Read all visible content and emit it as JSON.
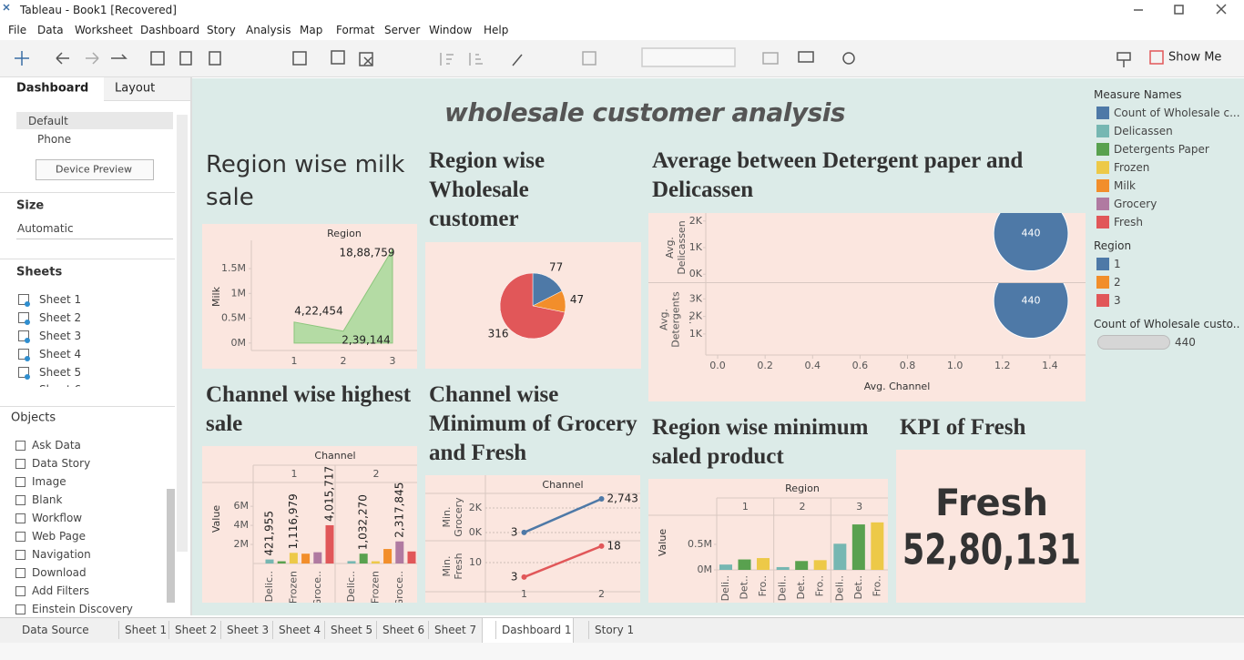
{
  "window": {
    "title": "Tableau - Book1 [Recovered]"
  },
  "menu": [
    "File",
    "Data",
    "Worksheet",
    "Dashboard",
    "Story",
    "Analysis",
    "Map",
    "Format",
    "Server",
    "Window",
    "Help"
  ],
  "toolbar": {
    "show_me": "Show Me"
  },
  "sidebar": {
    "tabs": [
      "Dashboard",
      "Layout"
    ],
    "devices": [
      "Default",
      "Phone"
    ],
    "device_preview": "Device Preview",
    "size_heading": "Size",
    "size_value": "Automatic",
    "sheets_heading": "Sheets",
    "sheets": [
      "Sheet 1",
      "Sheet 2",
      "Sheet 3",
      "Sheet 4",
      "Sheet 5",
      "Sheet 6"
    ],
    "objects_heading": "Objects",
    "objects": [
      "Ask Data",
      "Data Story",
      "Image",
      "Blank",
      "Workflow",
      "Web Page",
      "Navigation",
      "Download",
      "Add Filters",
      "Einstein Discovery"
    ]
  },
  "dashboard": {
    "title": "wholesale customer analysis"
  },
  "legends": {
    "measure_names": {
      "title": "Measure Names",
      "items": [
        {
          "name": "Count of Wholesale c...",
          "color": "#4e79a7"
        },
        {
          "name": "Delicassen",
          "color": "#76b7b2"
        },
        {
          "name": "Detergents Paper",
          "color": "#59a14f"
        },
        {
          "name": "Frozen",
          "color": "#edc948"
        },
        {
          "name": "Milk",
          "color": "#f28e2b"
        },
        {
          "name": "Grocery",
          "color": "#b07aa1"
        },
        {
          "name": "Fresh",
          "color": "#e15759"
        }
      ]
    }
  },
  "tabs": [
    "Data Source",
    "Sheet 1",
    "Sheet 2",
    "Sheet 3",
    "Sheet 4",
    "Sheet 5",
    "Sheet 6",
    "Sheet 7",
    "Dashboard 1",
    "Story 1"
  ],
  "chart_data": [
    {
      "type": "area",
      "title": "Region wise milk sale",
      "x_label": "Region",
      "y_label": "Milk",
      "x": [
        1,
        2,
        3
      ],
      "values": [
        422454,
        239144,
        1888759
      ],
      "value_labels": [
        "4,22,454",
        "2,39,144",
        "18,88,759"
      ],
      "color": "#a7d89a",
      "xlim": [
        0.13,
        3.5
      ],
      "xticks": [
        1,
        2,
        3
      ],
      "ylim": [
        -150000,
        2070000
      ],
      "yticks": [
        {
          "value": 0,
          "label": "0M"
        },
        {
          "value": 500000,
          "label": "0.5M"
        },
        {
          "value": 1000000,
          "label": "1M"
        },
        {
          "value": 1500000,
          "label": "1.5M"
        }
      ]
    },
    {
      "type": "pie",
      "title": "Region wise Wholesale customer",
      "legend_title": "Region",
      "categories": [
        "1",
        "2",
        "3"
      ],
      "values": [
        77,
        47,
        316
      ],
      "colors": [
        "#4e79a7",
        "#f28e2b",
        "#e15759"
      ]
    },
    {
      "type": "scatter",
      "title": "Average between Detergent paper and Delicassen",
      "x_label": "Avg. Channel",
      "size_legend_title": "Count of Wholesale custo..",
      "color": "#4e79a7",
      "x": [
        1.32
      ],
      "sizes": [
        440
      ],
      "xlim": [
        -0.05,
        1.55
      ],
      "xticks": [
        {
          "value": 0,
          "label": "0.0"
        },
        0.2,
        0.4,
        0.6,
        0.8,
        {
          "value": 1,
          "label": "1.0"
        },
        1.2,
        1.4
      ],
      "series": [
        {
          "name": "Avg. Delicassen",
          "values": [
            1525
          ],
          "ylim": [
            -300,
            2300
          ],
          "yticks": [
            {
              "value": 0,
              "label": "0K"
            },
            {
              "value": 1000,
              "label": "1K"
            },
            {
              "value": 2000,
              "label": "2K"
            }
          ]
        },
        {
          "name": "Avg. Detergents ...",
          "values": [
            2881
          ],
          "ylim": [
            -200,
            3900
          ],
          "yticks": [
            {
              "value": 1000,
              "label": "1K"
            },
            {
              "value": 2000,
              "label": "2K"
            },
            {
              "value": 3000,
              "label": "3K"
            }
          ]
        }
      ]
    },
    {
      "type": "bar",
      "title": "Channel wise highest sale",
      "x_label": "Channel",
      "y_label": "Value",
      "categories": [
        "1",
        "2"
      ],
      "bar_labels": [
        "Delic..",
        null,
        "Frozen",
        null,
        "Groce..",
        null
      ],
      "series": [
        {
          "color": "#76b7b2",
          "values": [
            421955,
            248988
          ],
          "value_labels": [
            "421,955",
            null
          ]
        },
        {
          "color": "#59a14f",
          "values": [
            235587,
            1032270
          ],
          "value_labels": [
            null,
            "1,032,270"
          ]
        },
        {
          "color": "#edc948",
          "values": [
            1116979,
            234671
          ],
          "value_labels": [
            "1,116,979",
            null
          ]
        },
        {
          "color": "#f28e2b",
          "values": [
            1028614,
            1521743
          ],
          "value_labels": [
            null,
            null
          ]
        },
        {
          "color": "#b07aa1",
          "values": [
            1180717,
            2317845
          ],
          "value_labels": [
            null,
            "2,317,845"
          ]
        },
        {
          "color": "#e15759",
          "values": [
            4015717,
            1264414
          ],
          "value_labels": [
            "4,015,717",
            null
          ]
        }
      ],
      "ylim": [
        0,
        8500000
      ],
      "yticks": [
        {
          "value": 2000000,
          "label": "2M"
        },
        {
          "value": 4000000,
          "label": "4M"
        },
        {
          "value": 6000000,
          "label": "6M"
        }
      ]
    },
    {
      "type": "line",
      "title": "Channel wise Minimum of Grocery and Fresh",
      "x_label": "Channel",
      "x": [
        1,
        2
      ],
      "xticks": [
        1,
        2
      ],
      "xlim": [
        0.5,
        2.5
      ],
      "series": [
        {
          "name": "Min. Grocery",
          "color": "#4e79a7",
          "values": [
            3,
            2743
          ],
          "value_labels": [
            "3",
            "2,743"
          ],
          "ylim": [
            -670,
            3190
          ],
          "yticks": [
            {
              "value": 0,
              "label": "0K"
            },
            {
              "value": 2000,
              "label": "2K"
            }
          ]
        },
        {
          "name": "Min. Fresh",
          "color": "#e15759",
          "values": [
            3,
            18
          ],
          "ylim": [
            -4.1,
            20.6
          ],
          "yticks": [
            10
          ]
        }
      ]
    },
    {
      "type": "bar",
      "title": "Region wise minimum saled product",
      "x_label": "Region",
      "y_label": "Value",
      "categories": [
        "1",
        "2",
        "3"
      ],
      "bar_labels": [
        "Deli..",
        "Det..",
        "Fro.."
      ],
      "series": [
        {
          "color": "#76b7b2",
          "values": [
            104327,
            54506,
            512110
          ]
        },
        {
          "color": "#59a14f",
          "values": [
            204136,
            173311,
            890410
          ]
        },
        {
          "color": "#edc948",
          "values": [
            231026,
            190132,
            930492
          ]
        }
      ],
      "ylim": [
        0,
        1070000
      ],
      "yticks": [
        {
          "value": 0,
          "label": "0M"
        },
        {
          "value": 500000,
          "label": "0.5M"
        }
      ]
    },
    {
      "type": "kpi",
      "title": "KPI of Fresh",
      "label": "Fresh",
      "value": 5280131,
      "value_label": "52,80,131"
    }
  ]
}
